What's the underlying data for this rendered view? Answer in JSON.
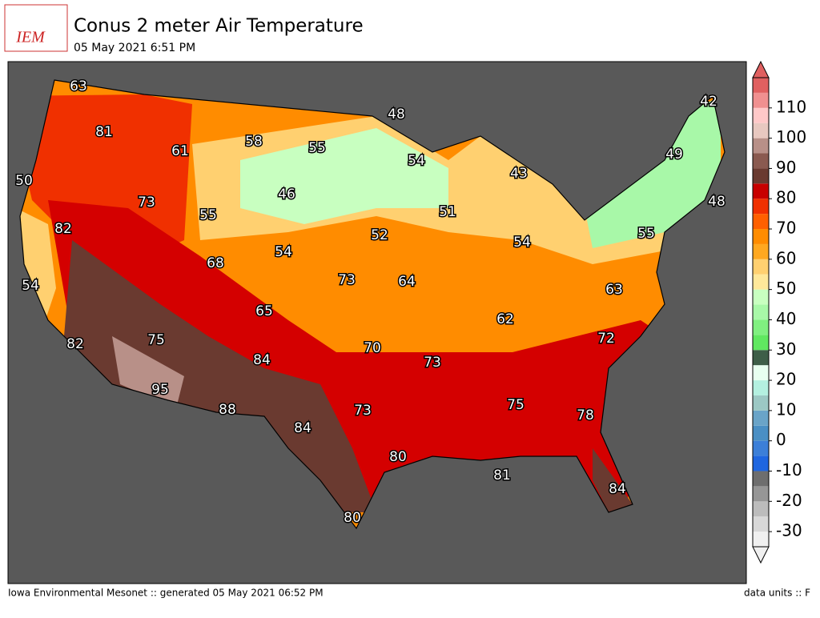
{
  "header": {
    "logo_text": "IEM",
    "title": "Conus 2 meter Air Temperature",
    "subtitle": "05 May 2021 6:51 PM"
  },
  "footer": {
    "left": "Iowa Environmental Mesonet :: generated 05 May 2021 06:52 PM",
    "right": "data units :: F"
  },
  "colorbar": {
    "lim": [
      -35,
      120
    ],
    "ticks": [
      -30,
      -20,
      -10,
      0,
      10,
      20,
      30,
      40,
      50,
      60,
      70,
      80,
      90,
      100,
      110
    ],
    "colors": [
      "#f0f0f0",
      "#d8d8d8",
      "#bcbcbc",
      "#969696",
      "#6e6e6e",
      "#1f66e0",
      "#3c7fd8",
      "#4a8fc4",
      "#6aa4c8",
      "#9cc8c4",
      "#b4f0e0",
      "#e8fff0",
      "#3e5e48",
      "#60e860",
      "#80f080",
      "#a8f8a8",
      "#c8ffc0",
      "#ffe89a",
      "#ffd070",
      "#ffa820",
      "#ff8c00",
      "#ff6000",
      "#f03000",
      "#c80000",
      "#6a3a30",
      "#8a5a50",
      "#b89088",
      "#e8c8c0",
      "#ffc8c8",
      "#f09090",
      "#e06060"
    ]
  },
  "map": {
    "station_values": [
      63,
      81,
      50,
      61,
      58,
      55,
      48,
      42,
      54,
      43,
      49,
      46,
      55,
      73,
      82,
      51,
      52,
      48,
      55,
      54,
      68,
      54,
      54,
      73,
      64,
      63,
      65,
      62,
      75,
      70,
      72,
      82,
      84,
      73,
      95,
      88,
      75,
      78,
      73,
      84,
      80,
      81,
      84,
      80
    ]
  }
}
